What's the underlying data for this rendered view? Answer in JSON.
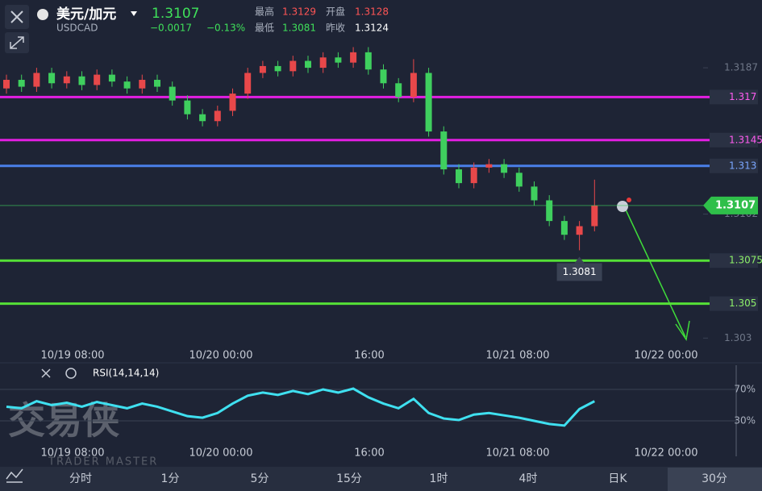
{
  "header": {
    "title": "美元/加元",
    "symbol": "USDCAD",
    "change": "−0.0017",
    "change_pct": "−0.13%",
    "high_label": "最高",
    "high": "1.3129",
    "open_label": "开盘",
    "open": "1.3128",
    "low_label": "最低",
    "prev_label": "昨收",
    "prev": "1.3124"
  },
  "time_axis": [
    "10/19 08:00",
    "10/20 00:00",
    "16:00",
    "10/21 08:00",
    "10/22 00:00"
  ],
  "rsi_label": "RSI(14,14,14)",
  "watermark": {
    "cn": "交易侠",
    "en": "TRADER MASTER"
  },
  "tabs": [
    "分时",
    "1分",
    "5分",
    "15分",
    "1时",
    "4时",
    "日K",
    "30分"
  ],
  "chart_data": [
    {
      "type": "candlestick",
      "up_color": "#e8484a",
      "down_color": "#3fcf5e",
      "ylim": [
        1.3025,
        1.3217
      ],
      "yticks": [
        1.3187,
        1.3102,
        1.303
      ],
      "levels": [
        {
          "value": 1.317,
          "color": "#e21ee2"
        },
        {
          "value": 1.3145,
          "color": "#e21ee2"
        },
        {
          "value": 1.313,
          "color": "#4a7fe8"
        },
        {
          "value": 1.3075,
          "color": "#55e037"
        },
        {
          "value": 1.305,
          "color": "#55e037"
        }
      ],
      "open": [
        1.3175,
        1.318,
        1.3176,
        1.3184,
        1.3178,
        1.3182,
        1.3177,
        1.3183,
        1.3179,
        1.3175,
        1.318,
        1.3176,
        1.3168,
        1.316,
        1.3156,
        1.3162,
        1.3172,
        1.3184,
        1.3188,
        1.3185,
        1.3191,
        1.3187,
        1.3193,
        1.319,
        1.3196,
        1.3186,
        1.3178,
        1.317,
        1.3184,
        1.315,
        1.3128,
        1.312,
        1.3129,
        1.3131,
        1.3126,
        1.3118,
        1.311,
        1.3098,
        1.309,
        1.3095
      ],
      "high": [
        1.3183,
        1.3183,
        1.3187,
        1.3187,
        1.3185,
        1.3185,
        1.3186,
        1.3186,
        1.3182,
        1.3183,
        1.3183,
        1.3179,
        1.3171,
        1.3163,
        1.3165,
        1.3175,
        1.3187,
        1.3191,
        1.3191,
        1.3194,
        1.3194,
        1.3196,
        1.3196,
        1.3199,
        1.3199,
        1.3189,
        1.3181,
        1.3192,
        1.3187,
        1.3153,
        1.3131,
        1.3132,
        1.3134,
        1.3134,
        1.3129,
        1.3121,
        1.3113,
        1.3101,
        1.3098,
        1.3122
      ],
      "low": [
        1.3172,
        1.3173,
        1.3173,
        1.3175,
        1.3175,
        1.3174,
        1.3174,
        1.3176,
        1.3172,
        1.3172,
        1.3173,
        1.3165,
        1.3157,
        1.3153,
        1.3153,
        1.3159,
        1.3169,
        1.3181,
        1.3182,
        1.3182,
        1.3184,
        1.3184,
        1.3187,
        1.3187,
        1.3183,
        1.3175,
        1.3167,
        1.3167,
        1.3147,
        1.3125,
        1.3117,
        1.3117,
        1.3126,
        1.3123,
        1.3115,
        1.3107,
        1.3095,
        1.3087,
        1.3081,
        1.3092
      ],
      "close": [
        1.318,
        1.3176,
        1.3184,
        1.3178,
        1.3182,
        1.3177,
        1.3183,
        1.3179,
        1.3175,
        1.318,
        1.3176,
        1.3168,
        1.316,
        1.3156,
        1.3162,
        1.3172,
        1.3184,
        1.3188,
        1.3185,
        1.3191,
        1.3187,
        1.3193,
        1.319,
        1.3196,
        1.3186,
        1.3178,
        1.317,
        1.3184,
        1.315,
        1.3128,
        1.312,
        1.3129,
        1.3131,
        1.3126,
        1.3118,
        1.311,
        1.3098,
        1.309,
        1.3095,
        1.3107
      ]
    },
    {
      "type": "line",
      "color": "#3fe0f0",
      "ylim": [
        10,
        100
      ],
      "yticks": [
        {
          "value": 70,
          "label": "70%"
        },
        {
          "value": 30,
          "label": "30%"
        }
      ],
      "values": [
        48,
        46,
        55,
        50,
        53,
        48,
        54,
        50,
        46,
        52,
        48,
        42,
        36,
        34,
        40,
        52,
        62,
        66,
        63,
        68,
        64,
        70,
        66,
        71,
        60,
        52,
        46,
        58,
        40,
        33,
        31,
        38,
        40,
        37,
        34,
        30,
        26,
        24,
        45,
        55
      ]
    }
  ]
}
